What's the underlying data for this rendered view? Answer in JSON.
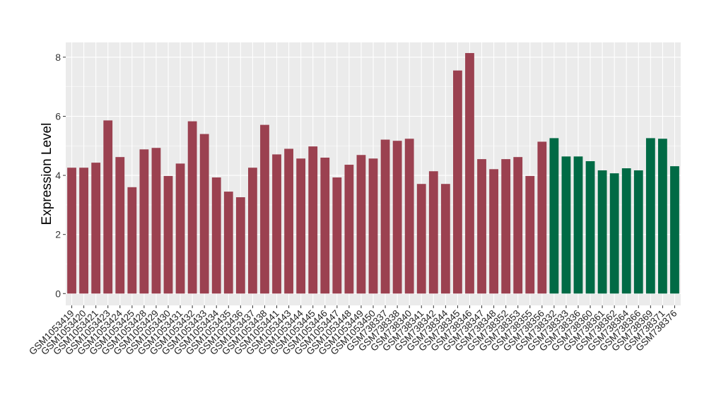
{
  "chart_data": {
    "type": "bar",
    "title": "",
    "xlabel": "",
    "ylabel": "Expression Level",
    "ylim": [
      -0.4,
      8.5
    ],
    "yticks": [
      0,
      2,
      4,
      6,
      8
    ],
    "grid": true,
    "colors": {
      "group1": "#9b4150",
      "group2": "#006a45",
      "panel": "#ebebeb"
    },
    "categories": [
      "GSM1053419",
      "GSM1053420",
      "GSM1053421",
      "GSM1053423",
      "GSM1053424",
      "GSM1053425",
      "GSM1053428",
      "GSM1053429",
      "GSM1053430",
      "GSM1053431",
      "GSM1053432",
      "GSM1053433",
      "GSM1053434",
      "GSM1053435",
      "GSM1053436",
      "GSM1053437",
      "GSM1053438",
      "GSM1053441",
      "GSM1053443",
      "GSM1053444",
      "GSM1053445",
      "GSM1053446",
      "GSM1053447",
      "GSM1053448",
      "GSM1053449",
      "GSM1053450",
      "GSM738337",
      "GSM738338",
      "GSM738340",
      "GSM738341",
      "GSM738342",
      "GSM738344",
      "GSM738345",
      "GSM738346",
      "GSM738347",
      "GSM738348",
      "GSM738352",
      "GSM738353",
      "GSM738355",
      "GSM738356",
      "GSM738332",
      "GSM738333",
      "GSM738336",
      "GSM738360",
      "GSM738361",
      "GSM738362",
      "GSM738364",
      "GSM738366",
      "GSM738369",
      "GSM738371",
      "GSM738376"
    ],
    "values": [
      4.26,
      4.26,
      4.43,
      5.86,
      4.62,
      3.6,
      4.88,
      4.93,
      3.98,
      4.4,
      5.83,
      5.4,
      3.93,
      3.45,
      3.26,
      4.26,
      5.71,
      4.71,
      4.9,
      4.57,
      4.98,
      4.6,
      3.93,
      4.36,
      4.69,
      4.57,
      5.21,
      5.17,
      5.24,
      3.71,
      4.14,
      3.71,
      7.55,
      8.14,
      4.55,
      4.21,
      4.55,
      4.62,
      3.98,
      5.14,
      5.26,
      4.64,
      4.64,
      4.48,
      4.17,
      4.07,
      4.24,
      4.17,
      5.26,
      5.24,
      4.31
    ],
    "groups": [
      1,
      1,
      1,
      1,
      1,
      1,
      1,
      1,
      1,
      1,
      1,
      1,
      1,
      1,
      1,
      1,
      1,
      1,
      1,
      1,
      1,
      1,
      1,
      1,
      1,
      1,
      1,
      1,
      1,
      1,
      1,
      1,
      1,
      1,
      1,
      1,
      1,
      1,
      1,
      1,
      2,
      2,
      2,
      2,
      2,
      2,
      2,
      2,
      2,
      2,
      2
    ]
  }
}
